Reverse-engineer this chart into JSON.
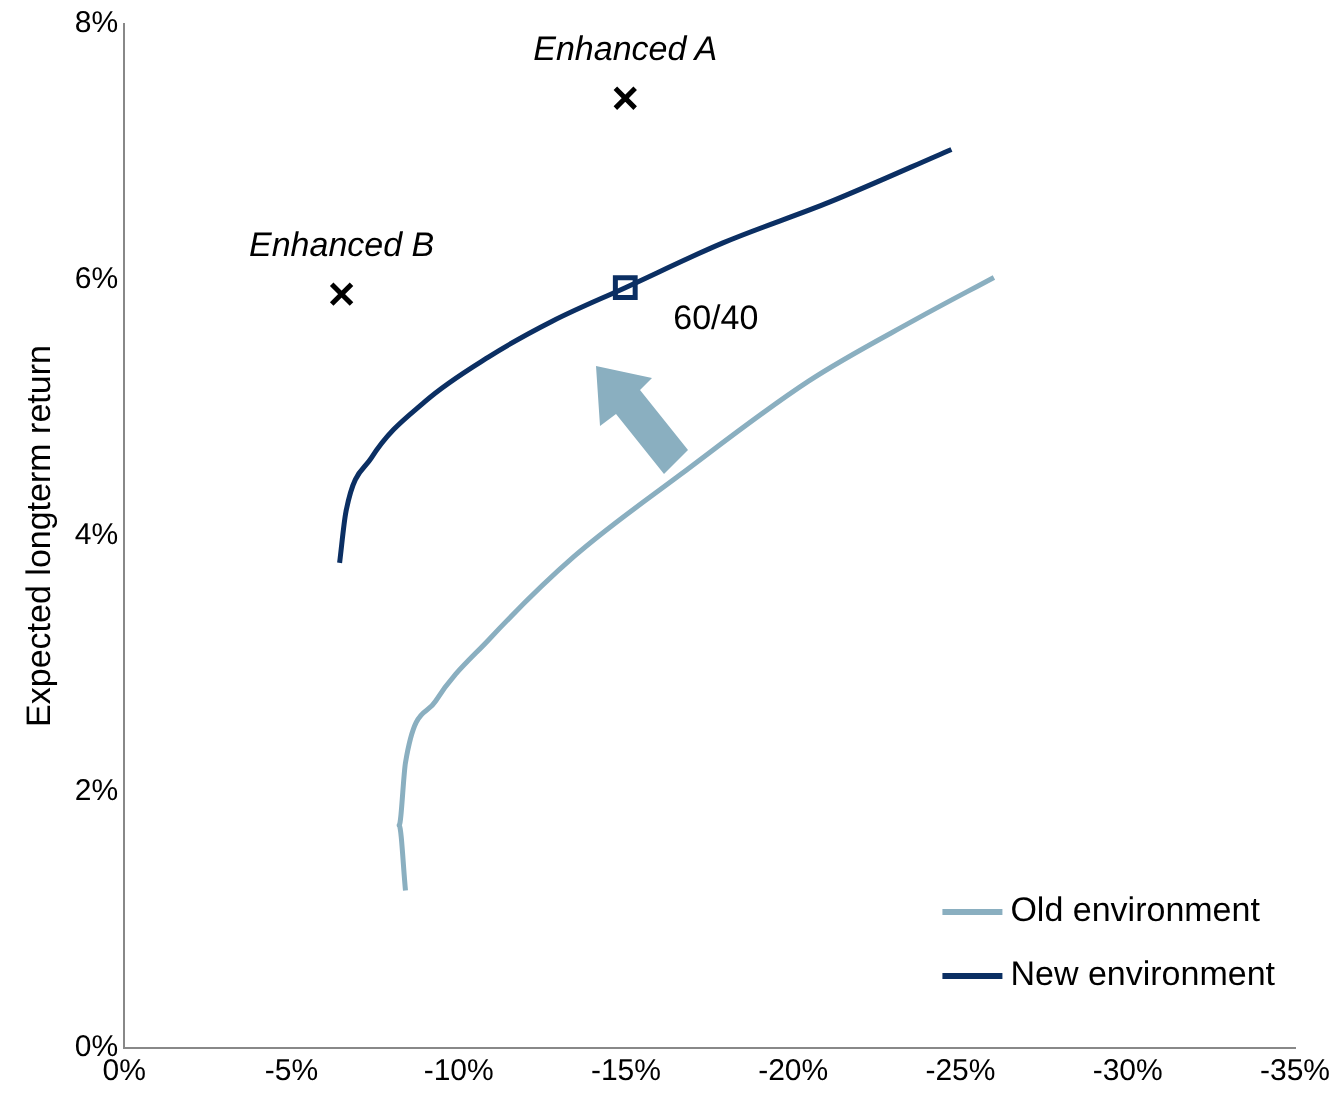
{
  "chart_data": {
    "type": "line",
    "ylabel": "Expected longterm return",
    "xlim": [
      0,
      -35
    ],
    "xticks": [
      {
        "value": 0,
        "label": "0%"
      },
      {
        "value": -5,
        "label": "-5%"
      },
      {
        "value": -10,
        "label": "-10%"
      },
      {
        "value": -15,
        "label": "-15%"
      },
      {
        "value": -20,
        "label": "-20%"
      },
      {
        "value": -25,
        "label": "-25%"
      },
      {
        "value": -30,
        "label": "-30%"
      },
      {
        "value": -35,
        "label": "-35%"
      }
    ],
    "ylim": [
      0,
      8
    ],
    "yticks": [
      {
        "value": 0,
        "label": "0%"
      },
      {
        "value": 2,
        "label": "2%"
      },
      {
        "value": 4,
        "label": "4%"
      },
      {
        "value": 6,
        "label": "6%"
      },
      {
        "value": 8,
        "label": "8%"
      }
    ],
    "grid": false,
    "legend": "bottom right",
    "line_style": "solid",
    "series": [
      {
        "name": "Old environment",
        "type": "line",
        "marker": "none",
        "color": "#8aafc0",
        "x": [
          -8.41,
          -8.22,
          -8.41,
          -9.31,
          -10.9,
          -13.45,
          -16.63,
          -20.46,
          -23.65,
          -26.0
        ],
        "values": [
          1.23,
          1.74,
          2.23,
          2.71,
          3.19,
          3.84,
          4.48,
          5.21,
          5.69,
          6.02
        ]
      },
      {
        "name": "New environment",
        "type": "line",
        "marker": "none",
        "color": "#0b2f63",
        "x": [
          -6.44,
          -6.63,
          -7.39,
          -8.99,
          -10.9,
          -12.81,
          -14.98,
          -17.9,
          -21.1,
          -24.73
        ],
        "values": [
          3.79,
          4.19,
          4.61,
          5.05,
          5.4,
          5.68,
          5.94,
          6.29,
          6.61,
          7.02
        ]
      },
      {
        "name": "60/40",
        "type": "scatter",
        "marker": "square",
        "color": "#0b2f63",
        "x": [
          -14.98
        ],
        "values": [
          5.94
        ]
      },
      {
        "name": "Enhanced A",
        "type": "scatter",
        "marker": "cross",
        "color": "#000000",
        "x": [
          -14.98
        ],
        "values": [
          7.42
        ]
      },
      {
        "name": "Enhanced B",
        "type": "scatter",
        "marker": "cross",
        "color": "#000000",
        "x": [
          -6.5
        ],
        "values": [
          5.89
        ]
      }
    ]
  }
}
